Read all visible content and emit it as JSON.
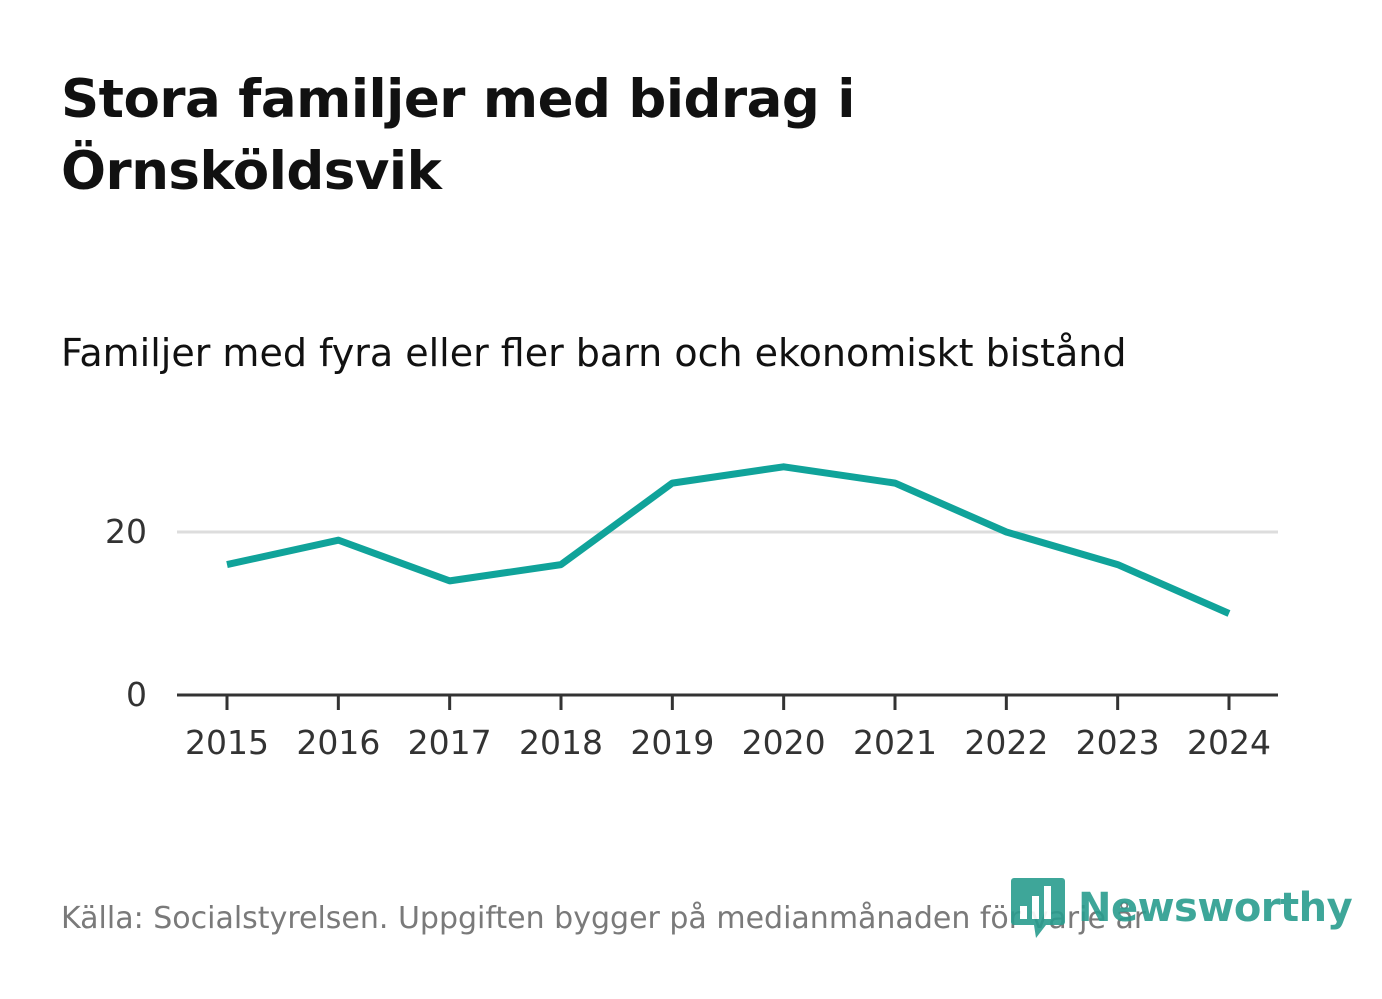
{
  "title": "Stora familjer med bidrag i Örnsköldsvik",
  "subtitle": "Familjer med fyra eller fler barn och ekonomiskt bistånd",
  "source": "Källa: Socialstyrelsen. Uppgiften bygger på medianmånaden för varje år",
  "brand": {
    "name": "Newsworthy",
    "color": "#2a9d8f",
    "icon": "bar-chart-speech-bubble-icon"
  },
  "colors": {
    "line": "#10a39a",
    "grid": "#dddddd",
    "axis": "#333333"
  },
  "chart_data": {
    "type": "line",
    "title": "Stora familjer med bidrag i Örnsköldsvik",
    "subtitle": "Familjer med fyra eller fler barn och ekonomiskt bistånd",
    "categories": [
      "2015",
      "2016",
      "2017",
      "2018",
      "2019",
      "2020",
      "2021",
      "2022",
      "2023",
      "2024"
    ],
    "series": [
      {
        "values": [
          16,
          19,
          14,
          16,
          26,
          28,
          26,
          20,
          16,
          10
        ]
      }
    ],
    "yticks": [
      0,
      20
    ],
    "ylim": [
      0,
      32
    ],
    "grid": true,
    "legend": "none"
  }
}
